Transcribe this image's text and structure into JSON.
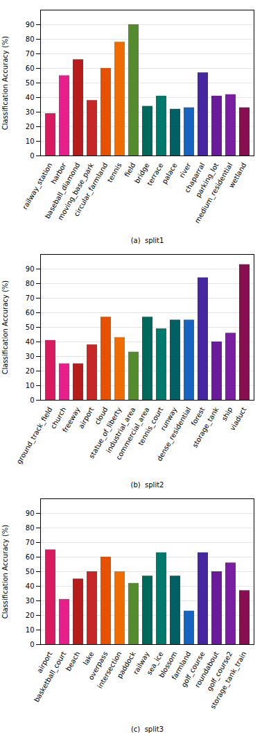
{
  "chart_data": [
    {
      "type": "bar",
      "xlabel": "(a)  split1",
      "ylabel": "Classification Accuracy (%)",
      "categories": [
        "railway_station",
        "harbor",
        "baseball_diamond",
        "moving_base_park",
        "circular_farmland",
        "tennis",
        "field",
        "bridge",
        "terrace",
        "palace",
        "river",
        "chaparral",
        "parking_lot",
        "medium_residential",
        "wetland"
      ],
      "values": [
        29,
        55,
        66,
        38,
        60,
        78,
        90,
        34,
        41,
        32,
        33,
        57,
        41,
        42,
        33
      ],
      "colors": [
        "#D81B60",
        "#E91E8C",
        "#B71C1C",
        "#C62828",
        "#E65100",
        "#EF6C00",
        "#558B2F",
        "#00695C",
        "#00796B",
        "#006064",
        "#1565C0",
        "#4527A0",
        "#6A1B9A",
        "#7B1FA2",
        "#880E4F"
      ],
      "ylim": [
        0,
        100
      ],
      "yticks": [
        0,
        10,
        20,
        30,
        40,
        50,
        60,
        70,
        80,
        90
      ],
      "grid": true
    },
    {
      "type": "bar",
      "xlabel": "(b)  split2",
      "ylabel": "Classification Accuracy (%)",
      "categories": [
        "ground_track_field",
        "church",
        "freeway",
        "airport",
        "cloud",
        "statue_of_liberty",
        "industrial_area",
        "commercial_area",
        "tennis_court",
        "runway",
        "dense_residential",
        "forest",
        "storage_tank",
        "ship",
        "viaduct"
      ],
      "values": [
        41,
        25,
        25,
        38,
        57,
        43,
        33,
        57,
        49,
        55,
        55,
        84,
        40,
        46,
        93
      ],
      "colors": [
        "#D81B60",
        "#E91E8C",
        "#B71C1C",
        "#C62828",
        "#E65100",
        "#EF6C00",
        "#558B2F",
        "#00695C",
        "#00796B",
        "#006064",
        "#1565C0",
        "#4527A0",
        "#6A1B9A",
        "#7B1FA2",
        "#880E4F"
      ],
      "ylim": [
        0,
        100
      ],
      "yticks": [
        0,
        10,
        20,
        30,
        40,
        50,
        60,
        70,
        80,
        90
      ],
      "grid": true
    },
    {
      "type": "bar",
      "xlabel": "(c)  split3",
      "ylabel": "Classification Accuracy (%)",
      "categories": [
        "airport",
        "basketball_court",
        "beach",
        "lake",
        "overpass",
        "intersection",
        "paddock",
        "railway",
        "sea_ice",
        "blossom",
        "farmland",
        "golf_course",
        "roundabout",
        "golf_course2",
        "storage_tank_train"
      ],
      "values": [
        65,
        31,
        45,
        50,
        60,
        50,
        42,
        47,
        63,
        47,
        23,
        63,
        50,
        56,
        37
      ],
      "colors": [
        "#D81B60",
        "#E91E8C",
        "#B71C1C",
        "#C62828",
        "#E65100",
        "#EF6C00",
        "#558B2F",
        "#00695C",
        "#00796B",
        "#006064",
        "#1565C0",
        "#4527A0",
        "#6A1B9A",
        "#7B1FA2",
        "#880E4F"
      ],
      "ylim": [
        0,
        100
      ],
      "yticks": [
        0,
        10,
        20,
        30,
        40,
        50,
        60,
        70,
        80,
        90
      ],
      "grid": true
    }
  ]
}
